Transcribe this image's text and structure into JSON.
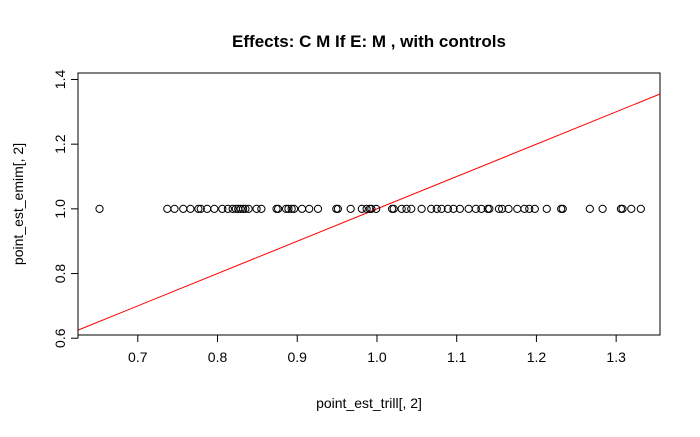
{
  "chart_data": {
    "type": "scatter",
    "title": "Effects: C M If  E: M , with controls",
    "xlabel": "point_est_trill[, 2]",
    "ylabel": "point_est_emim[, 2]",
    "xlim": [
      0.625,
      1.355
    ],
    "ylim": [
      0.61,
      1.42
    ],
    "x_ticks": [
      0.7,
      0.8,
      0.9,
      1.0,
      1.1,
      1.2,
      1.3
    ],
    "x_tick_labels": [
      "0.7",
      "0.8",
      "0.9",
      "1.0",
      "1.1",
      "1.2",
      "1.3"
    ],
    "y_ticks": [
      0.6,
      0.8,
      1.0,
      1.2,
      1.4
    ],
    "y_tick_labels": [
      "0.6",
      "0.8",
      "1.0",
      "1.2",
      "1.4"
    ],
    "grid": false,
    "points": {
      "marker": "open-circle",
      "color": "#000000",
      "x": [
        0.652,
        0.737,
        0.746,
        0.757,
        0.766,
        0.776,
        0.779,
        0.787,
        0.796,
        0.806,
        0.813,
        0.819,
        0.823,
        0.826,
        0.829,
        0.832,
        0.835,
        0.839,
        0.849,
        0.855,
        0.874,
        0.876,
        0.886,
        0.889,
        0.893,
        0.896,
        0.906,
        0.915,
        0.926,
        0.949,
        0.951,
        0.967,
        0.981,
        0.987,
        0.991,
        0.993,
        0.999,
        1.019,
        1.021,
        1.031,
        1.037,
        1.043,
        1.056,
        1.068,
        1.075,
        1.081,
        1.089,
        1.096,
        1.104,
        1.115,
        1.124,
        1.131,
        1.139,
        1.141,
        1.153,
        1.157,
        1.165,
        1.176,
        1.185,
        1.191,
        1.198,
        1.213,
        1.231,
        1.233,
        1.267,
        1.283,
        1.306,
        1.308,
        1.319,
        1.331
      ],
      "y": [
        1.0,
        1.0,
        1.0,
        1.0,
        1.0,
        1.0,
        1.0,
        1.0,
        1.0,
        1.0,
        1.0,
        1.0,
        1.0,
        1.0,
        1.0,
        1.0,
        1.0,
        1.0,
        1.0,
        1.0,
        1.0,
        1.0,
        1.0,
        1.0,
        1.0,
        1.0,
        1.0,
        1.0,
        1.0,
        1.0,
        1.0,
        1.0,
        1.0,
        1.0,
        1.0,
        1.0,
        1.0,
        1.0,
        1.0,
        1.0,
        1.0,
        1.0,
        1.0,
        1.0,
        1.0,
        1.0,
        1.0,
        1.0,
        1.0,
        1.0,
        1.0,
        1.0,
        1.0,
        1.0,
        1.0,
        1.0,
        1.0,
        1.0,
        1.0,
        1.0,
        1.0,
        1.0,
        1.0,
        1.0,
        1.0,
        1.0,
        1.0,
        1.0,
        1.0,
        1.0
      ]
    },
    "reference_line": {
      "type": "identity",
      "intercept": 0,
      "slope": 1,
      "color": "#ff0000"
    }
  }
}
